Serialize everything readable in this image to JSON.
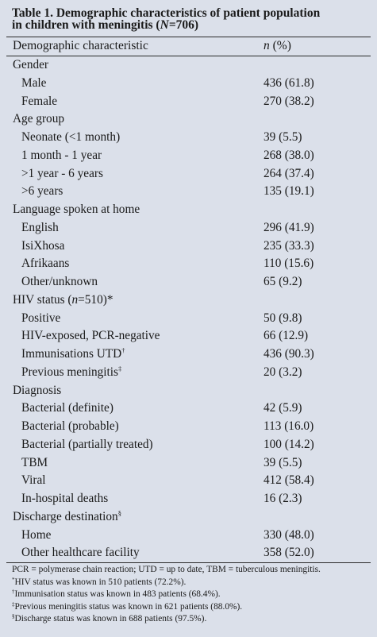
{
  "title": {
    "line1": "Table 1. Demographic characteristics of patient population",
    "line2_prefix": "in children with meningitis (",
    "line2_italic": "N",
    "line2_suffix": "=706)"
  },
  "header": {
    "col1": "Demographic characteristic",
    "col2_italic": "n",
    "col2_rest": " (%)"
  },
  "rows": [
    {
      "label": "Gender",
      "value": "",
      "sub": false
    },
    {
      "label": "Male",
      "value": "436 (61.8)",
      "sub": true
    },
    {
      "label": "Female",
      "value": "270 (38.2)",
      "sub": true
    },
    {
      "label": "Age group",
      "value": "",
      "sub": false
    },
    {
      "label": "Neonate (<1 month)",
      "value": "39 (5.5)",
      "sub": true
    },
    {
      "label": "1 month - 1 year",
      "value": "268 (38.0)",
      "sub": true
    },
    {
      "label": ">1 year - 6 years",
      "value": "264 (37.4)",
      "sub": true
    },
    {
      "label": ">6 years",
      "value": "135 (19.1)",
      "sub": true
    },
    {
      "label": "Language spoken at home",
      "value": "",
      "sub": false
    },
    {
      "label": "English",
      "value": "296 (41.9)",
      "sub": true
    },
    {
      "label": "IsiXhosa",
      "value": "235 (33.3)",
      "sub": true
    },
    {
      "label": "Afrikaans",
      "value": "110 (15.6)",
      "sub": true
    },
    {
      "label": "Other/unknown",
      "value": "65 (9.2)",
      "sub": true
    },
    {
      "label": "HIV status (",
      "label_italic": "n",
      "label_after": "=510)*",
      "value": "",
      "sub": false
    },
    {
      "label": "Positive",
      "value": "50 (9.8)",
      "sub": true
    },
    {
      "label": "HIV-exposed, PCR-negative",
      "value": "66 (12.9)",
      "sub": true
    },
    {
      "label": "Immunisations UTD",
      "mark": "†",
      "value": "436 (90.3)",
      "sub": true
    },
    {
      "label": "Previous meningitis",
      "mark": "‡",
      "value": "20 (3.2)",
      "sub": true
    },
    {
      "label": "Diagnosis",
      "value": "",
      "sub": false
    },
    {
      "label": "Bacterial (definite)",
      "value": "42 (5.9)",
      "sub": true
    },
    {
      "label": "Bacterial (probable)",
      "value": "113 (16.0)",
      "sub": true
    },
    {
      "label": "Bacterial (partially treated)",
      "value": "100 (14.2)",
      "sub": true
    },
    {
      "label": "TBM",
      "value": "39 (5.5)",
      "sub": true
    },
    {
      "label": "Viral",
      "value": "412 (58.4)",
      "sub": true
    },
    {
      "label": "In-hospital deaths",
      "value": "16 (2.3)",
      "sub": true
    },
    {
      "label": "Discharge destination",
      "mark": "§",
      "value": "",
      "sub": false
    },
    {
      "label": "Home",
      "value": "330 (48.0)",
      "sub": true
    },
    {
      "label": "Other healthcare facility",
      "value": "358 (52.0)",
      "sub": true
    }
  ],
  "footnotes": [
    {
      "mark": "",
      "text": "PCR = polymerase chain reaction; UTD = up to date, TBM = tuberculous meningitis."
    },
    {
      "mark": "*",
      "text": "HIV status was known in 510 patients (72.2%)."
    },
    {
      "mark": "†",
      "text": "Immunisation status was known in 483 patients (68.4%)."
    },
    {
      "mark": "‡",
      "text": "Previous meningitis status was known in 621 patients (88.0%)."
    },
    {
      "mark": "§",
      "text": "Discharge status was known in 688 patients (97.5%)."
    }
  ]
}
